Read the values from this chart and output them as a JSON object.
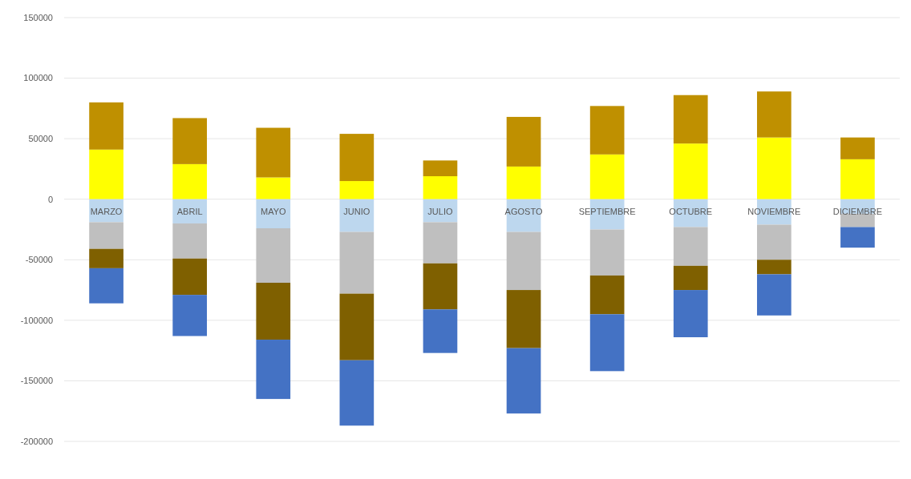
{
  "chart_data": {
    "type": "bar",
    "stacked": true,
    "categories": [
      "MARZO",
      "ABRIL",
      "MAYO",
      "JUNIO",
      "JULIO",
      "AGOSTO",
      "SEPTIEMBRE",
      "OCTUBRE",
      "NOVIEMBRE",
      "DICIEMBRE"
    ],
    "series": [
      {
        "color": "#ffff00",
        "values": [
          41000,
          29000,
          18000,
          15000,
          19000,
          27000,
          37000,
          46000,
          51000,
          33000
        ]
      },
      {
        "color": "#bf9000",
        "values": [
          39000,
          38000,
          41000,
          39000,
          13000,
          41000,
          40000,
          40000,
          38000,
          18000
        ]
      },
      {
        "color": "#bdd7ee",
        "values": [
          -19000,
          -20000,
          -24000,
          -27000,
          -19000,
          -27000,
          -25000,
          -23000,
          -21000,
          -12000
        ]
      },
      {
        "color": "#bfbfbf",
        "values": [
          -22000,
          -29000,
          -45000,
          -51000,
          -34000,
          -48000,
          -38000,
          -32000,
          -29000,
          -11000
        ]
      },
      {
        "color": "#7f6000",
        "values": [
          -16000,
          -30000,
          -47000,
          -55000,
          -38000,
          -48000,
          -32000,
          -20000,
          -12000,
          null
        ]
      },
      {
        "color": "#4472c4",
        "values": [
          -29000,
          -34000,
          -49000,
          -54000,
          -36000,
          -54000,
          -47000,
          -39000,
          -34000,
          -17000
        ]
      }
    ],
    "ylim": [
      -200000,
      150000
    ],
    "yticks": [
      -200000,
      -150000,
      -100000,
      -50000,
      0,
      50000,
      100000,
      150000
    ],
    "grid": "y"
  }
}
